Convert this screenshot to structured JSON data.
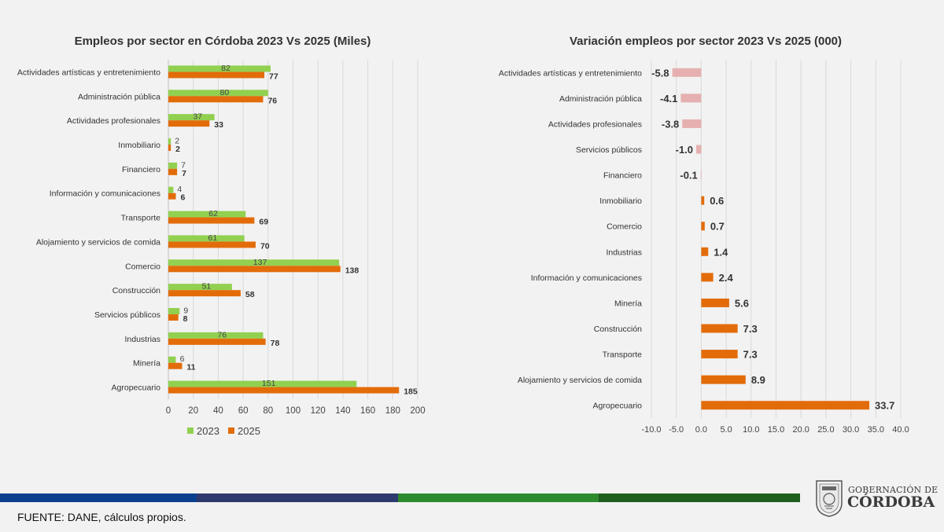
{
  "chart_data": [
    {
      "type": "bar",
      "orientation": "horizontal",
      "title": "Empleos por sector en Córdoba 2023 Vs 2025 (Miles)",
      "categories": [
        "Actividades artísticas y entretenimiento",
        "Administración pública",
        "Actividades profesionales",
        "Inmobiliario",
        "Financiero",
        "Información y comunicaciones",
        "Transporte",
        "Alojamiento y servicios de comida",
        "Comercio",
        "Construcción",
        "Servicios públicos",
        "Industrias",
        "Minería",
        "Agropecuario"
      ],
      "series": [
        {
          "name": "2023",
          "color": "#92d050",
          "values": [
            82,
            80,
            37,
            2,
            7,
            4,
            62,
            61,
            137,
            51,
            9,
            76,
            6,
            151
          ]
        },
        {
          "name": "2025",
          "color": "#e36c0a",
          "values": [
            77,
            76,
            33,
            2,
            7,
            6,
            69,
            70,
            138,
            58,
            8,
            78,
            11,
            185
          ]
        }
      ],
      "xlim": [
        0,
        200
      ],
      "xticks": [
        "0",
        "20",
        "40",
        "60",
        "80",
        "100",
        "120",
        "140",
        "160",
        "180",
        "200"
      ],
      "grid": true,
      "legend_position": "bottom-left"
    },
    {
      "type": "bar",
      "orientation": "horizontal",
      "title": "Variación empleos por sector 2023 Vs 2025 (000)",
      "categories": [
        "Actividades artísticas y entretenimiento",
        "Administración pública",
        "Actividades profesionales",
        "Servicios públicos",
        "Financiero",
        "Inmobiliario",
        "Comercio",
        "Industrias",
        "Información y comunicaciones",
        "Minería",
        "Construcción",
        "Transporte",
        "Alojamiento y servicios de comida",
        "Agropecuario"
      ],
      "values": [
        -5.8,
        -4.1,
        -3.8,
        -1.0,
        -0.1,
        0.6,
        0.7,
        1.4,
        2.4,
        5.6,
        7.3,
        7.3,
        8.9,
        33.7
      ],
      "value_labels": [
        "-5.8",
        "-4.1",
        "-3.8",
        "-1.0",
        "-0.1",
        "0.6",
        "0.7",
        "1.4",
        "2.4",
        "5.6",
        "7.3",
        "7.3",
        "8.9",
        "33.7"
      ],
      "positive_color": "#e36c0a",
      "negative_color": "#e6b0b0",
      "xlim": [
        -10,
        40
      ],
      "xticks": [
        "-10.0",
        "-5.0",
        "0.0",
        "5.0",
        "10.0",
        "15.0",
        "20.0",
        "25.0",
        "30.0",
        "35.0",
        "40.0"
      ],
      "grid": true
    }
  ],
  "footer": {
    "source": "FUENTE: DANE, cálculos propios.",
    "stripe_colors": [
      "#0c3f8e",
      "#2e3a6e",
      "#2d8a2d",
      "#1f5e1f"
    ]
  },
  "logo": {
    "line1": "GOBERNACIÓN DE",
    "line2": "CÓRDOBA"
  }
}
